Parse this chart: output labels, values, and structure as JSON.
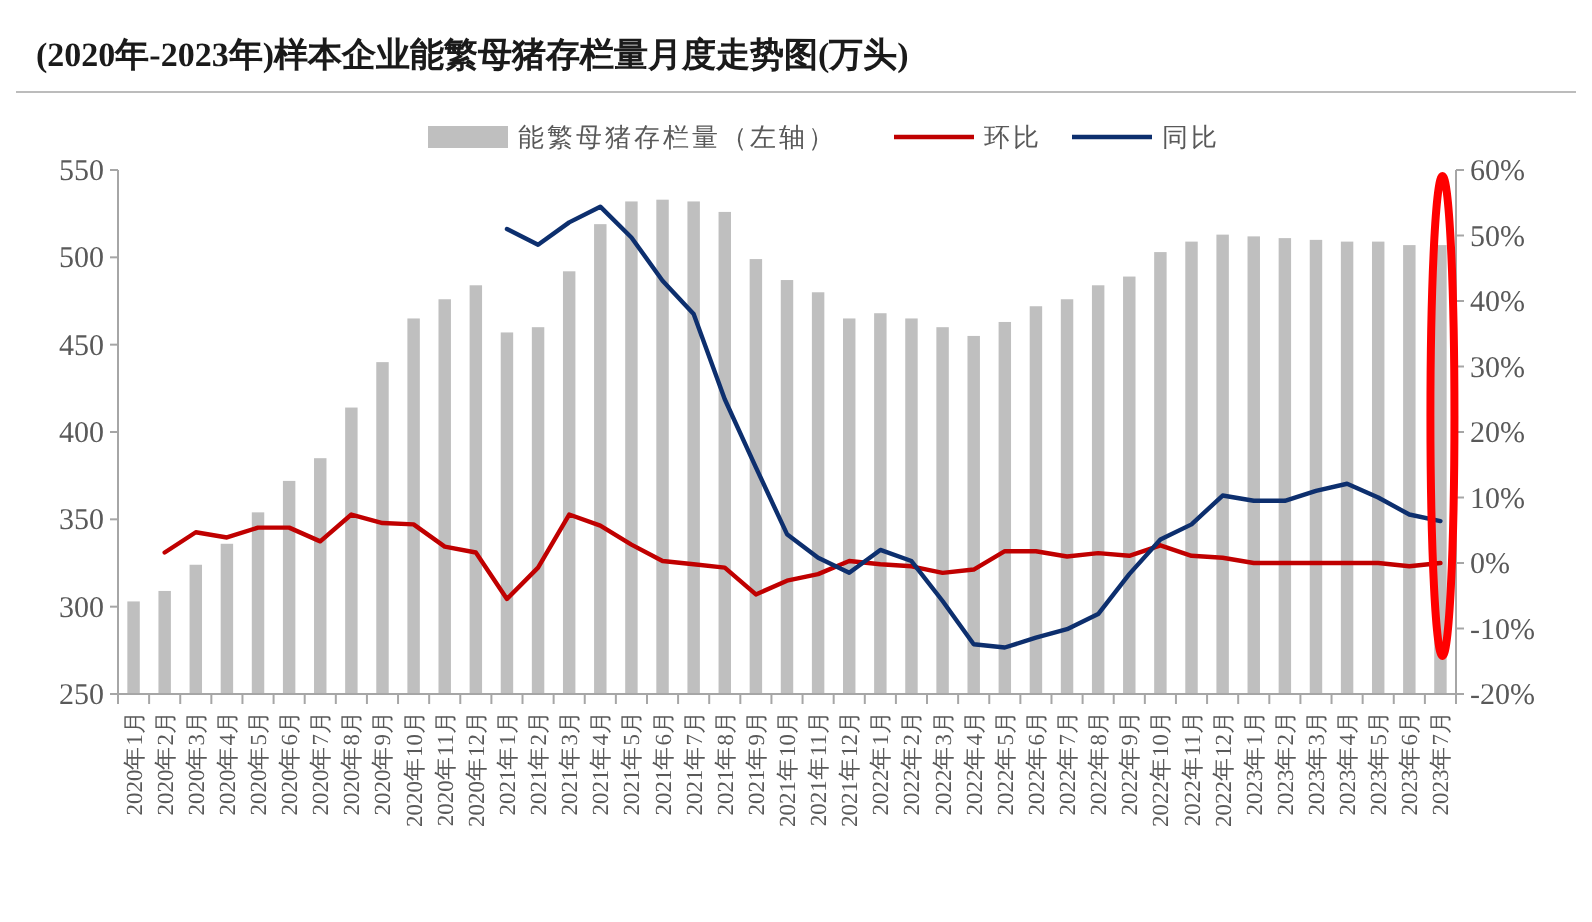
{
  "chart_data": {
    "type": "bar",
    "title": "(2020年-2023年)样本企业能繁母猪存栏量月度走势图(万头)",
    "categories": [
      "2020年1月",
      "2020年2月",
      "2020年3月",
      "2020年4月",
      "2020年5月",
      "2020年6月",
      "2020年7月",
      "2020年8月",
      "2020年9月",
      "2020年10月",
      "2020年11月",
      "2020年12月",
      "2021年1月",
      "2021年2月",
      "2021年3月",
      "2021年4月",
      "2021年5月",
      "2021年6月",
      "2021年7月",
      "2021年8月",
      "2021年9月",
      "2021年10月",
      "2021年11月",
      "2021年12月",
      "2022年1月",
      "2022年2月",
      "2022年3月",
      "2022年4月",
      "2022年5月",
      "2022年6月",
      "2022年7月",
      "2022年8月",
      "2022年9月",
      "2022年10月",
      "2022年11月",
      "2022年12月",
      "2023年1月",
      "2023年2月",
      "2023年3月",
      "2023年4月",
      "2023年5月",
      "2023年6月",
      "2023年7月"
    ],
    "series": [
      {
        "name": "能繁母猪存栏量（左轴）",
        "color": "#bfbfbf",
        "values": [
          303,
          309,
          324,
          336,
          354,
          372,
          385,
          414,
          440,
          465,
          476,
          484,
          457,
          460,
          492,
          519,
          532,
          533,
          532,
          526,
          499,
          487,
          480,
          465,
          468,
          465,
          460,
          455,
          463,
          472,
          476,
          484,
          489,
          503,
          509,
          513,
          512,
          511,
          510,
          509,
          509,
          507,
          507
        ]
      },
      {
        "name": "环比",
        "type": "line",
        "axis": "y2",
        "color": "#c00000",
        "values": [
          null,
          1.6,
          4.7,
          3.9,
          5.4,
          5.4,
          3.3,
          7.4,
          6.1,
          5.9,
          2.5,
          1.6,
          -5.5,
          -0.7,
          7.4,
          5.7,
          2.8,
          0.3,
          -0.2,
          -0.7,
          -4.8,
          -2.7,
          -1.7,
          0.3,
          -0.2,
          -0.5,
          -1.5,
          -1.0,
          1.8,
          1.8,
          1.0,
          1.5,
          1.1,
          2.7,
          1.1,
          0.8,
          0,
          0,
          0,
          0,
          0,
          -0.5,
          0
        ]
      },
      {
        "name": "同比",
        "type": "line",
        "axis": "y2",
        "color": "#0d2f6e",
        "values": [
          null,
          null,
          null,
          null,
          null,
          null,
          null,
          null,
          null,
          null,
          null,
          null,
          51.0,
          48.6,
          52.0,
          54.4,
          49.7,
          43.1,
          38.0,
          25,
          14.6,
          4.4,
          0.8,
          -1.5,
          2.0,
          0.3,
          -5.8,
          -12.4,
          -12.9,
          -11.4,
          -10.1,
          -7.8,
          -1.7,
          3.6,
          5.9,
          10.3,
          9.5,
          9.5,
          11.0,
          12.1,
          10.0,
          7.4,
          6.4
        ]
      }
    ],
    "ylim": [
      250,
      550
    ],
    "yticks": [
      250,
      300,
      350,
      400,
      450,
      500,
      550
    ],
    "y2lim": [
      -20,
      60
    ],
    "y2ticks": [
      {
        "value": -20,
        "label": "-20%"
      },
      {
        "value": -10,
        "label": "-10%"
      },
      {
        "value": 0,
        "label": "0%"
      },
      {
        "value": 10,
        "label": "10%"
      },
      {
        "value": 20,
        "label": "20%"
      },
      {
        "value": 30,
        "label": "30%"
      },
      {
        "value": 40,
        "label": "40%"
      },
      {
        "value": 50,
        "label": "50%"
      },
      {
        "value": 60,
        "label": "60%"
      }
    ],
    "legend": "top"
  }
}
